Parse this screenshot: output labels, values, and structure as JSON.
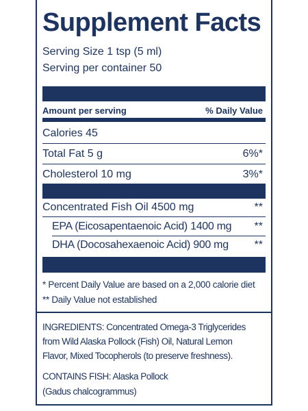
{
  "header": {
    "title": "Supplement Facts",
    "serving_size": "Serving Size 1 tsp (5 ml)",
    "servings": "Serving per container 50"
  },
  "columns": {
    "amount": "Amount per serving",
    "dv": "% Daily Value"
  },
  "rows": [
    {
      "label": "Calories 45",
      "dv": ""
    },
    {
      "label": "Total Fat 5 g",
      "dv": "6%*"
    },
    {
      "label": "Cholesterol 10 mg",
      "dv": "3%*"
    },
    {
      "label": "Concentrated Fish Oil 4500 mg",
      "dv": "**"
    },
    {
      "label": "EPA (Eicosapentaenoic Acid) 1400 mg",
      "dv": "**"
    },
    {
      "label": "DHA (Docosahexaenoic Acid) 900 mg",
      "dv": "**"
    }
  ],
  "footnotes": [
    "* Percent Daily Value are based on a 2,000 calorie diet",
    "** Daily Value not established"
  ],
  "ingredients": [
    "INGREDIENTS: Concentrated Omega-3 Triglycerides",
    "from Wild Alaska Pollock (Fish) Oil, Natural Lemon",
    "Flavor, Mixed Tocopherols (to preserve freshness)."
  ],
  "contains": [
    "CONTAINS FISH: Alaska Pollock",
    "(Gadus chalcogrammus)"
  ]
}
